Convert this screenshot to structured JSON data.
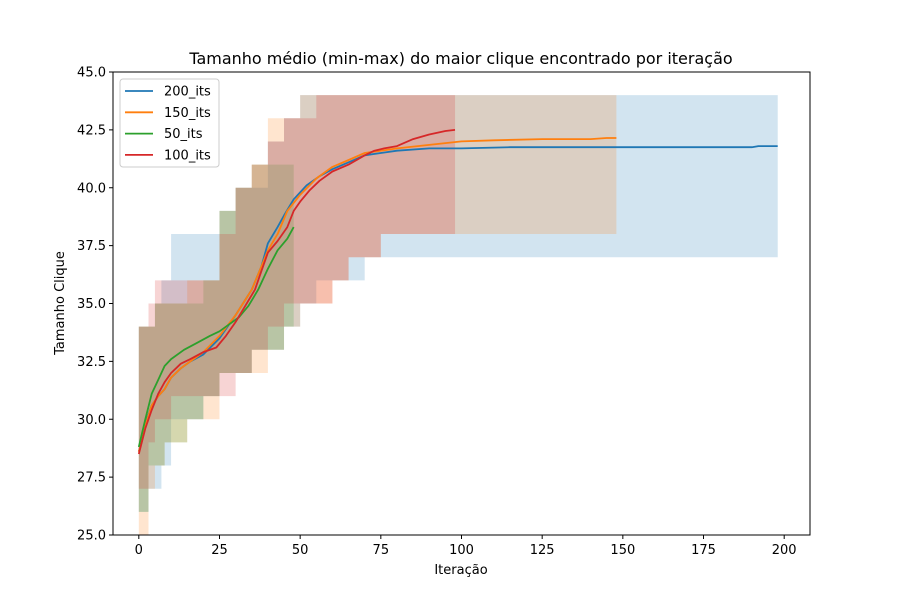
{
  "chart_data": {
    "type": "line",
    "title": "Tamanho médio (min-max) do maior clique encontrado por iteração",
    "xlabel": "Iteração",
    "ylabel": "Tamanho Clique",
    "xlim": [
      -8,
      208
    ],
    "ylim": [
      25,
      45
    ],
    "xticks": [
      0,
      25,
      50,
      75,
      100,
      125,
      150,
      175,
      200
    ],
    "xtick_labels": [
      "0",
      "25",
      "50",
      "75",
      "100",
      "125",
      "150",
      "175",
      "200"
    ],
    "yticks": [
      25,
      27.5,
      30,
      32.5,
      35,
      37.5,
      40,
      42.5,
      45
    ],
    "ytick_labels": [
      "25.0",
      "27.5",
      "30.0",
      "32.5",
      "35.0",
      "37.5",
      "40.0",
      "42.5",
      "45.0"
    ],
    "grid": false,
    "legend": "top-left",
    "series": [
      {
        "name": "200_its",
        "color": "#1f77b4",
        "mean": [
          [
            0,
            28.6
          ],
          [
            2,
            29.8
          ],
          [
            4,
            30.6
          ],
          [
            6,
            31.0
          ],
          [
            8,
            31.3
          ],
          [
            10,
            31.8
          ],
          [
            13,
            32.2
          ],
          [
            16,
            32.5
          ],
          [
            20,
            32.8
          ],
          [
            25,
            33.5
          ],
          [
            30,
            34.5
          ],
          [
            35,
            35.6
          ],
          [
            38,
            36.6
          ],
          [
            40,
            37.6
          ],
          [
            43,
            38.3
          ],
          [
            45,
            38.8
          ],
          [
            48,
            39.5
          ],
          [
            52,
            40.1
          ],
          [
            56,
            40.5
          ],
          [
            60,
            40.8
          ],
          [
            65,
            41.1
          ],
          [
            70,
            41.4
          ],
          [
            75,
            41.5
          ],
          [
            80,
            41.6
          ],
          [
            90,
            41.7
          ],
          [
            100,
            41.7
          ],
          [
            115,
            41.75
          ],
          [
            130,
            41.75
          ],
          [
            150,
            41.75
          ],
          [
            175,
            41.75
          ],
          [
            190,
            41.75
          ],
          [
            192,
            41.8
          ],
          [
            198,
            41.8
          ]
        ],
        "band": [
          [
            0,
            26,
            34
          ],
          [
            3,
            27,
            34
          ],
          [
            5,
            27,
            35
          ],
          [
            7,
            28,
            36
          ],
          [
            10,
            30,
            38
          ],
          [
            15,
            30,
            38
          ],
          [
            20,
            31,
            38
          ],
          [
            25,
            32,
            39
          ],
          [
            30,
            32,
            40
          ],
          [
            35,
            33,
            40
          ],
          [
            40,
            33,
            42
          ],
          [
            45,
            34,
            43
          ],
          [
            50,
            35,
            44
          ],
          [
            55,
            36,
            44
          ],
          [
            60,
            36,
            44
          ],
          [
            65,
            36,
            44
          ],
          [
            70,
            37,
            44
          ],
          [
            100,
            37,
            44
          ],
          [
            150,
            37,
            44
          ],
          [
            198,
            37,
            44
          ]
        ]
      },
      {
        "name": "150_its",
        "color": "#ff7f0e",
        "mean": [
          [
            0,
            28.6
          ],
          [
            2,
            29.7
          ],
          [
            4,
            30.6
          ],
          [
            6,
            31.0
          ],
          [
            8,
            31.3
          ],
          [
            10,
            31.8
          ],
          [
            13,
            32.2
          ],
          [
            16,
            32.5
          ],
          [
            20,
            32.9
          ],
          [
            25,
            33.6
          ],
          [
            30,
            34.5
          ],
          [
            35,
            35.6
          ],
          [
            38,
            36.6
          ],
          [
            40,
            37.3
          ],
          [
            43,
            38.0
          ],
          [
            46,
            39.0
          ],
          [
            50,
            39.7
          ],
          [
            55,
            40.4
          ],
          [
            60,
            40.9
          ],
          [
            65,
            41.2
          ],
          [
            70,
            41.5
          ],
          [
            75,
            41.6
          ],
          [
            80,
            41.7
          ],
          [
            90,
            41.85
          ],
          [
            100,
            42.0
          ],
          [
            110,
            42.05
          ],
          [
            125,
            42.1
          ],
          [
            140,
            42.1
          ],
          [
            145,
            42.15
          ],
          [
            148,
            42.15
          ]
        ],
        "band": [
          [
            0,
            25,
            34
          ],
          [
            3,
            27,
            34
          ],
          [
            5,
            28,
            35
          ],
          [
            8,
            29,
            35
          ],
          [
            10,
            29,
            35
          ],
          [
            15,
            30,
            36
          ],
          [
            20,
            30,
            36
          ],
          [
            25,
            32,
            39
          ],
          [
            30,
            32,
            40
          ],
          [
            35,
            32,
            41
          ],
          [
            40,
            33,
            43
          ],
          [
            45,
            34,
            43
          ],
          [
            50,
            35,
            44
          ],
          [
            55,
            35,
            44
          ],
          [
            60,
            36,
            44
          ],
          [
            65,
            37,
            44
          ],
          [
            70,
            37,
            44
          ],
          [
            75,
            38,
            44
          ],
          [
            80,
            38,
            44
          ],
          [
            100,
            38,
            44
          ],
          [
            148,
            38,
            44
          ]
        ]
      },
      {
        "name": "50_its",
        "color": "#2ca02c",
        "mean": [
          [
            0,
            28.8
          ],
          [
            2,
            30.0
          ],
          [
            4,
            31.1
          ],
          [
            6,
            31.7
          ],
          [
            8,
            32.3
          ],
          [
            10,
            32.6
          ],
          [
            14,
            33.0
          ],
          [
            18,
            33.3
          ],
          [
            22,
            33.6
          ],
          [
            25,
            33.8
          ],
          [
            28,
            34.1
          ],
          [
            31,
            34.4
          ],
          [
            34,
            34.9
          ],
          [
            37,
            35.6
          ],
          [
            40,
            36.5
          ],
          [
            43,
            37.3
          ],
          [
            46,
            37.8
          ],
          [
            48,
            38.3
          ]
        ],
        "band": [
          [
            0,
            26,
            34
          ],
          [
            3,
            28,
            34
          ],
          [
            5,
            28,
            35
          ],
          [
            8,
            29,
            35
          ],
          [
            10,
            29,
            35
          ],
          [
            15,
            30,
            35
          ],
          [
            20,
            31,
            36
          ],
          [
            25,
            32,
            39
          ],
          [
            30,
            32,
            40
          ],
          [
            35,
            33,
            41
          ],
          [
            40,
            33,
            41
          ],
          [
            45,
            34,
            41
          ],
          [
            48,
            34,
            41
          ]
        ]
      },
      {
        "name": "100_its",
        "color": "#d62728",
        "mean": [
          [
            0,
            28.5
          ],
          [
            2,
            29.6
          ],
          [
            4,
            30.4
          ],
          [
            6,
            31.1
          ],
          [
            8,
            31.6
          ],
          [
            10,
            32.0
          ],
          [
            13,
            32.4
          ],
          [
            16,
            32.6
          ],
          [
            20,
            32.9
          ],
          [
            24,
            33.1
          ],
          [
            27,
            33.6
          ],
          [
            30,
            34.2
          ],
          [
            33,
            34.9
          ],
          [
            36,
            35.6
          ],
          [
            38,
            36.4
          ],
          [
            40,
            37.2
          ],
          [
            43,
            37.7
          ],
          [
            46,
            38.3
          ],
          [
            48,
            39.0
          ],
          [
            50,
            39.4
          ],
          [
            53,
            39.9
          ],
          [
            56,
            40.3
          ],
          [
            60,
            40.7
          ],
          [
            65,
            41.0
          ],
          [
            70,
            41.4
          ],
          [
            73,
            41.6
          ],
          [
            76,
            41.7
          ],
          [
            80,
            41.8
          ],
          [
            85,
            42.1
          ],
          [
            90,
            42.3
          ],
          [
            95,
            42.45
          ],
          [
            98,
            42.5
          ]
        ],
        "band": [
          [
            0,
            27,
            34
          ],
          [
            3,
            29,
            35
          ],
          [
            5,
            30,
            36
          ],
          [
            8,
            30,
            36
          ],
          [
            10,
            31,
            36
          ],
          [
            15,
            31,
            36
          ],
          [
            20,
            31,
            36
          ],
          [
            25,
            31,
            38
          ],
          [
            30,
            32,
            40
          ],
          [
            35,
            33,
            41
          ],
          [
            40,
            34,
            42
          ],
          [
            45,
            35,
            43
          ],
          [
            50,
            35,
            43
          ],
          [
            55,
            35,
            44
          ],
          [
            60,
            36,
            44
          ],
          [
            65,
            37,
            44
          ],
          [
            70,
            37,
            44
          ],
          [
            75,
            38,
            44
          ],
          [
            80,
            38,
            44
          ],
          [
            98,
            38,
            44
          ]
        ]
      }
    ]
  }
}
